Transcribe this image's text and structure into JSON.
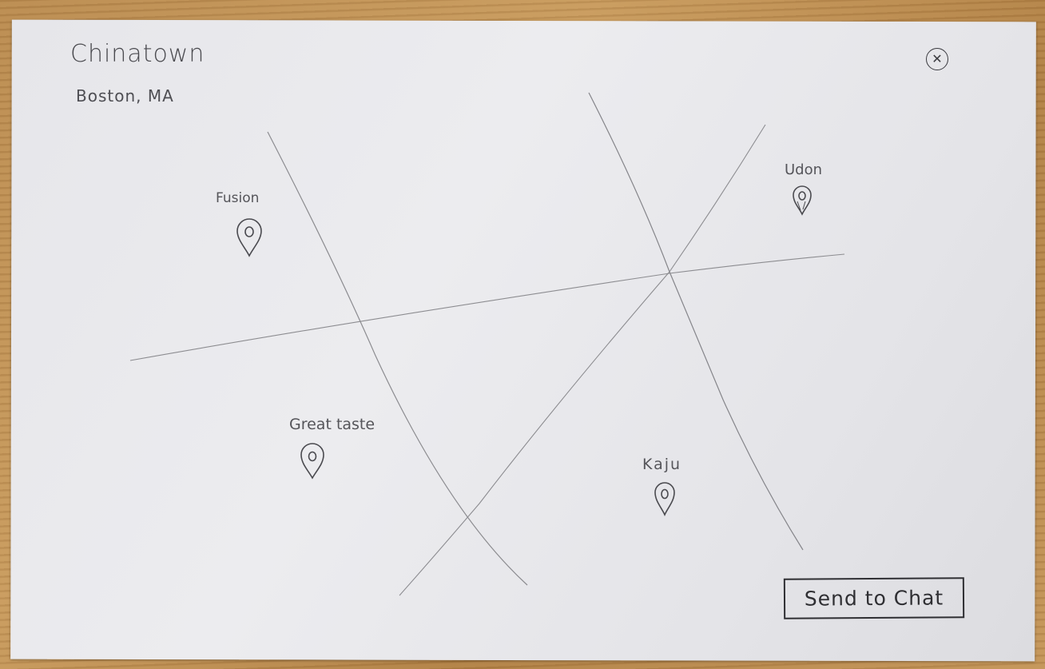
{
  "header": {
    "title": "Chinatown",
    "subtitle": "Boston, MA",
    "close_icon": "close-icon"
  },
  "map": {
    "markers": [
      {
        "id": "fusion",
        "label": "Fusion",
        "icon": "map-pin-icon"
      },
      {
        "id": "udon",
        "label": "Udon",
        "icon": "map-pin-icon"
      },
      {
        "id": "great-taste",
        "label": "Great taste",
        "icon": "map-pin-icon"
      },
      {
        "id": "kaju",
        "label": "Kaju",
        "icon": "map-pin-icon"
      }
    ]
  },
  "actions": {
    "send_label": "Send to Chat"
  },
  "colors": {
    "ink": "#3a3a3f",
    "pencil": "#8c8c90",
    "paper": "#e8e8ec"
  }
}
